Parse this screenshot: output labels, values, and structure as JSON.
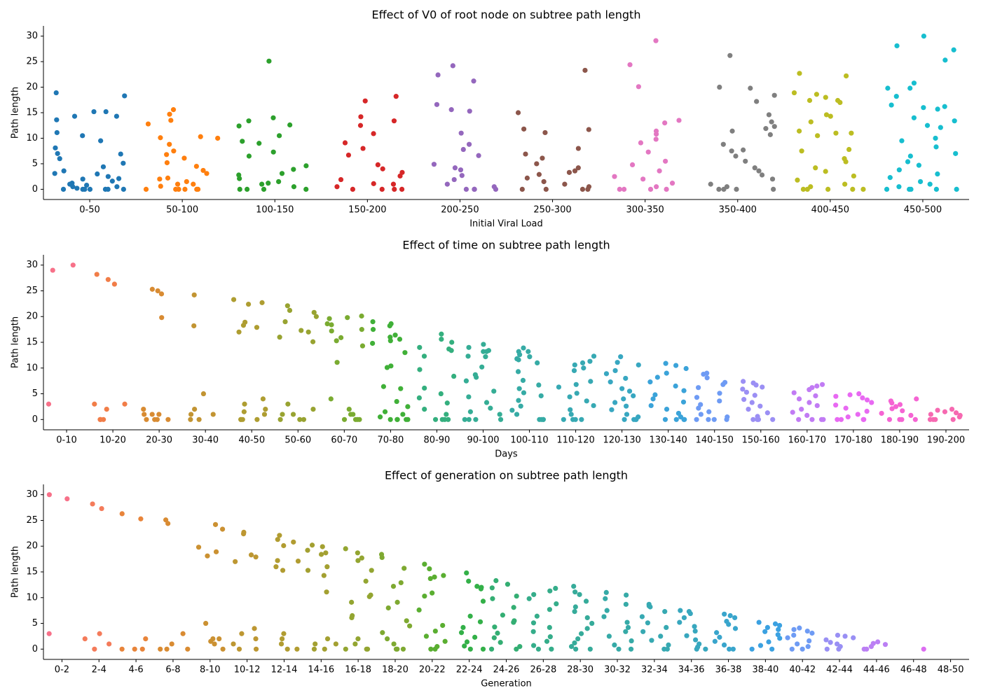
{
  "chart_data": [
    {
      "type": "strip",
      "title": "Effect of V0 of root node on subtree path length",
      "x_label": "Initial Viral Load",
      "y_label": "Path length",
      "categories": [
        "0-50",
        "50-100",
        "100-150",
        "150-200",
        "200-250",
        "250-300",
        "300-350",
        "350-400",
        "400-450",
        "450-500"
      ],
      "colors": [
        "#1f77b4",
        "#ff7f0e",
        "#2ca02c",
        "#d62728",
        "#9467bd",
        "#8c564b",
        "#e377c2",
        "#7f7f7f",
        "#bcbd22",
        "#17becf"
      ],
      "values": [
        [
          14.3,
          8.1,
          6.9,
          18.9,
          15.2,
          15.2,
          13.6,
          10.5,
          9.5,
          11.1,
          7,
          18.3,
          14.3,
          6,
          5.1,
          4.4,
          3.6,
          3.1,
          2.5,
          2.1,
          1.6,
          1.2,
          0.8,
          0.5,
          0.2,
          0,
          0,
          0,
          0,
          0,
          0,
          0,
          2,
          1,
          3,
          0.5
        ],
        [
          8.8,
          13.5,
          12.8,
          15.6,
          10,
          10.1,
          10.3,
          14.7,
          7.5,
          6.8,
          6.1,
          5.2,
          4.5,
          3.7,
          3.1,
          2.2,
          1.5,
          1,
          0.6,
          0,
          0,
          0,
          0,
          0,
          0,
          2,
          1
        ],
        [
          14,
          9.4,
          6.5,
          25.1,
          12.6,
          9,
          12.4,
          10.5,
          7.3,
          13.4,
          4.6,
          3.9,
          3.1,
          2.1,
          1.5,
          1,
          0.5,
          0,
          0,
          0,
          0,
          2.8,
          1.2
        ],
        [
          13.4,
          17.3,
          10.9,
          14.2,
          8,
          18.2,
          9.1,
          12.5,
          6.7,
          4.8,
          4,
          3.3,
          2.6,
          1.9,
          1,
          0.5,
          0,
          0,
          0,
          0,
          1.1
        ],
        [
          16.6,
          24.2,
          21.2,
          22.4,
          11,
          8.8,
          7.8,
          15.6,
          15.3,
          6.6,
          4.9,
          4.2,
          3.8,
          2.7,
          1.9,
          1,
          0.5,
          0,
          0,
          0,
          0
        ],
        [
          15,
          11.8,
          11.7,
          23.3,
          11.1,
          8,
          6.9,
          6.1,
          5,
          4.2,
          3.6,
          2.9,
          2.2,
          1.5,
          1,
          0.5,
          0,
          0,
          0,
          0,
          3.3
        ],
        [
          13.5,
          20.1,
          11.4,
          9.8,
          10.8,
          13,
          9.1,
          24.4,
          29.1,
          7.3,
          5.5,
          4.8,
          3.6,
          2.5,
          2,
          1.2,
          0.5,
          0,
          0,
          0,
          0
        ],
        [
          14.6,
          17.2,
          13.2,
          26.2,
          18.4,
          11.9,
          12.3,
          11.4,
          10.7,
          7.7,
          7.5,
          19.8,
          20,
          8.8,
          6.5,
          5.5,
          4.2,
          3.6,
          2.8,
          2,
          1,
          0.5,
          0,
          0,
          0,
          0
        ],
        [
          22.7,
          22.2,
          13.2,
          17,
          18.6,
          14.6,
          14.3,
          11,
          10.5,
          11.4,
          17.4,
          18.9,
          17.4,
          18,
          11,
          7.8,
          7.5,
          6,
          5.4,
          4.2,
          3.5,
          2.6,
          1.8,
          1,
          0.5,
          0,
          0,
          0,
          0,
          0
        ],
        [
          12.1,
          16.5,
          20.8,
          19.8,
          19.8,
          14,
          18.2,
          15.7,
          16,
          27.3,
          28.1,
          30,
          25.3,
          16.2,
          12.5,
          13.4,
          10,
          9.5,
          8.3,
          7,
          6.5,
          5.4,
          4.7,
          3.8,
          3,
          2.3,
          1.5,
          1,
          0.5,
          0,
          0,
          0,
          0,
          0
        ]
      ],
      "ylim": [
        -2,
        32
      ],
      "yticks": [
        0,
        5,
        10,
        15,
        20,
        25,
        30
      ]
    },
    {
      "type": "strip",
      "title": "Effect of time on subtree path length",
      "x_label": "Days",
      "y_label": "Path length",
      "categories": [
        "0-10",
        "10-20",
        "20-30",
        "30-40",
        "40-50",
        "50-60",
        "60-70",
        "70-80",
        "80-90",
        "90-100",
        "100-110",
        "110-120",
        "120-130",
        "130-140",
        "140-150",
        "150-160",
        "160-170",
        "170-180",
        "180-190",
        "190-200"
      ],
      "colors": [
        "#f77189",
        "#f17d48",
        "#d88b32",
        "#c29432",
        "#ae9d31",
        "#98a331",
        "#7aab31",
        "#40b038",
        "#34af7e",
        "#35ad95",
        "#36aba5",
        "#37a9b3",
        "#38a7c1",
        "#3ba3d9",
        "#6e9bf4",
        "#9b8ff4",
        "#c17bf4",
        "#e869f2",
        "#f564d3",
        "#f669b1"
      ],
      "values": [
        [
          3,
          29,
          30
        ],
        [
          28.2,
          27.2,
          26.3,
          0,
          3,
          2,
          0,
          3,
          0
        ],
        [
          0,
          0,
          0,
          1,
          1,
          25,
          25.3,
          24.4,
          19.8,
          2,
          1,
          0
        ],
        [
          0,
          1,
          2,
          5,
          24.2,
          18.2,
          1,
          0
        ],
        [
          23.3,
          18.9,
          22.4,
          18.3,
          22.7,
          17.9,
          17,
          0,
          0,
          1,
          2,
          3,
          4,
          1.5,
          0,
          0
        ],
        [
          16,
          22.1,
          20.8,
          19,
          17.3,
          17,
          20,
          21.2,
          15.1,
          0,
          1,
          2,
          3,
          0,
          1,
          0
        ],
        [
          18.4,
          18.6,
          17.5,
          17.2,
          14.3,
          15.9,
          15.3,
          11.1,
          20.1,
          19.8,
          19.6,
          0,
          1,
          2,
          4,
          0,
          1,
          0,
          0
        ],
        [
          13,
          18.2,
          17.5,
          16.4,
          15.3,
          14.8,
          10.4,
          10.1,
          19,
          18.6,
          16,
          15.6,
          6.4,
          6,
          3.5,
          2.5,
          1.5,
          1,
          0.5,
          0,
          0,
          0,
          0,
          0
        ],
        [
          15.6,
          16.6,
          15,
          14,
          13.7,
          13.4,
          12.3,
          9.7,
          8.4,
          6.1,
          5,
          4.2,
          3.2,
          2,
          1,
          0,
          0,
          0,
          0
        ],
        [
          13.2,
          13.4,
          13.2,
          12.2,
          10.2,
          8.7,
          7.5,
          14,
          14.6,
          12.3,
          8.2,
          5.5,
          4.4,
          3.3,
          2.2,
          1.5,
          1,
          0,
          0,
          0,
          0
        ],
        [
          12.6,
          13.2,
          13.9,
          13.2,
          11.8,
          9.3,
          7.6,
          6.7,
          6,
          12.2,
          11.6,
          11,
          5.2,
          4.6,
          3.7,
          2.6,
          1.8,
          1,
          0,
          0,
          0,
          0
        ],
        [
          12.3,
          11.3,
          11,
          10.6,
          10,
          9.5,
          7.4,
          6.8,
          6.3,
          5.1,
          4.4,
          3.6,
          2.7,
          1.9,
          1,
          0,
          0,
          0,
          0
        ],
        [
          11.1,
          12.2,
          10.6,
          9.5,
          8.9,
          8,
          7.3,
          6,
          5.5,
          4.6,
          4,
          3.3,
          2.6,
          1.9,
          1,
          0.5,
          0,
          0,
          0,
          0
        ],
        [
          10.9,
          10.5,
          9.9,
          9,
          8.2,
          7.3,
          6.5,
          5.6,
          4.8,
          4,
          3.4,
          2.7,
          2,
          1.2,
          0.5,
          0,
          0,
          0,
          0
        ],
        [
          8.8,
          9,
          8.1,
          7.2,
          6.8,
          6.2,
          5.1,
          4.3,
          3.6,
          2.9,
          2.2,
          1.5,
          1,
          0.5,
          0,
          0,
          0,
          0
        ],
        [
          7.4,
          7.1,
          6.7,
          6.3,
          5.9,
          5.3,
          4.7,
          3.9,
          3.3,
          2.6,
          2,
          1.3,
          0.6,
          0,
          0,
          0,
          0
        ],
        [
          6.8,
          6.5,
          6.2,
          5.8,
          5.2,
          4.6,
          4,
          3.3,
          2.7,
          2,
          1.4,
          0.8,
          0,
          0,
          0,
          0
        ],
        [
          5,
          4.8,
          4.5,
          4.2,
          3.8,
          3.3,
          2.8,
          2.2,
          1.6,
          1,
          0.5,
          0,
          0,
          0,
          0
        ],
        [
          4,
          3.6,
          3.2,
          2.9,
          2.5,
          2.1,
          1.7,
          1.2,
          0.8,
          0,
          0,
          0,
          0
        ],
        [
          2,
          1.8,
          1.5,
          1.3,
          1,
          0.8,
          0.5,
          0,
          0,
          0,
          0
        ]
      ],
      "ylim": [
        -2,
        32
      ],
      "yticks": [
        0,
        5,
        10,
        15,
        20,
        25,
        30
      ]
    },
    {
      "type": "strip",
      "title": "Effect of generation on subtree path length",
      "x_label": "Generation",
      "y_label": "Path length",
      "categories": [
        "0-2",
        "2-4",
        "4-6",
        "6-8",
        "8-10",
        "10-12",
        "12-14",
        "14-16",
        "16-18",
        "18-20",
        "20-22",
        "22-24",
        "24-26",
        "26-28",
        "28-30",
        "30-32",
        "32-34",
        "34-36",
        "36-38",
        "38-40",
        "40-42",
        "42-44",
        "44-46",
        "46-48",
        "48-50"
      ],
      "colors": [
        "#f77189",
        "#f47b5a",
        "#e8843a",
        "#d98b32",
        "#cb9132",
        "#bd9732",
        "#b19c31",
        "#a3a031",
        "#93a531",
        "#7ea931",
        "#5aae31",
        "#33b048",
        "#34ae73",
        "#35ad8a",
        "#36ab9a",
        "#36aaa7",
        "#37a9b2",
        "#38a7be",
        "#39a5cc",
        "#3ba1e1",
        "#6e9bf4",
        "#998ff4",
        "#bb7ff4",
        "#dc6df1",
        "#f565cc"
      ],
      "values": [
        [
          30,
          29.2,
          3
        ],
        [
          27.3,
          28.2,
          3,
          2,
          1,
          0
        ],
        [
          26.3,
          25.3,
          2,
          0,
          0,
          0
        ],
        [
          25.1,
          24.4,
          3,
          1,
          0,
          0,
          0
        ],
        [
          19.8,
          18.9,
          18.1,
          23.3,
          24.2,
          5,
          2,
          1,
          2,
          1.5,
          0
        ],
        [
          17,
          22.4,
          17.9,
          18.3,
          22.7,
          3,
          2,
          1,
          0,
          4,
          0
        ],
        [
          20.8,
          20.1,
          16,
          17.2,
          17.1,
          21.3,
          22.1,
          15.3,
          2,
          1,
          3,
          0,
          0
        ],
        [
          18.4,
          14.3,
          19.9,
          19.2,
          18.7,
          11.1,
          15.3,
          16,
          20.2,
          2,
          1,
          1,
          0,
          0
        ],
        [
          19.5,
          18.7,
          17.7,
          15.3,
          13.2,
          9.1,
          6.1,
          17.2,
          10.5,
          10.2,
          6.5,
          2,
          1,
          0,
          0,
          0
        ],
        [
          18.4,
          17.8,
          15.7,
          12.9,
          12.2,
          9.1,
          8,
          5.5,
          4.5,
          3.2,
          2,
          1,
          0,
          0,
          0
        ],
        [
          16.5,
          14,
          13.7,
          15.6,
          14.3,
          10.9,
          10.3,
          7.6,
          4.6,
          3.5,
          2.5,
          1.5,
          0.5,
          0,
          0
        ],
        [
          12.2,
          11.7,
          14.8,
          13.2,
          12,
          9.3,
          6.4,
          5.3,
          4.2,
          3.2,
          2.3,
          1.4,
          0.6,
          0,
          0
        ],
        [
          13.3,
          12.6,
          11.9,
          10.3,
          9.8,
          8.1,
          6.6,
          5.5,
          5.2,
          4.3,
          3.1,
          2.2,
          1.3,
          0.5,
          0,
          0
        ],
        [
          11.3,
          10.6,
          11.8,
          9.8,
          8.8,
          7.7,
          6.4,
          5.1,
          4.2,
          3.4,
          2.4,
          1.5,
          0.7,
          0,
          0
        ],
        [
          12.2,
          11.1,
          10.6,
          9.3,
          8.2,
          7.3,
          6.1,
          5,
          4,
          3,
          2,
          1.2,
          0.5,
          0,
          0
        ],
        [
          11,
          10.5,
          9.8,
          8.7,
          7.5,
          6.3,
          5.2,
          4.2,
          3.4,
          2.5,
          1.6,
          0.8,
          0,
          0
        ],
        [
          8.7,
          8.4,
          8.2,
          7.3,
          6.3,
          5.1,
          4.2,
          3.4,
          2.5,
          1.7,
          0.8,
          0,
          0
        ],
        [
          7.5,
          7.3,
          6.9,
          6.1,
          5.2,
          4.4,
          3.5,
          2.6,
          1.8,
          1,
          0.4,
          0,
          0
        ],
        [
          6.8,
          6.5,
          6.1,
          5.4,
          4.8,
          4,
          3.2,
          2.3,
          1.5,
          0.8,
          0,
          0
        ],
        [
          5.2,
          4.9,
          4.6,
          4.2,
          3.8,
          3.4,
          2.8,
          2.1,
          1.4,
          0.7,
          0,
          0
        ],
        [
          4.1,
          3.8,
          3.5,
          3.1,
          2.7,
          2.2,
          1.6,
          1,
          0.5,
          0,
          0
        ],
        [
          2.7,
          2.5,
          2.2,
          1.8,
          1.3,
          1,
          0.5,
          0,
          0
        ],
        [
          1.4,
          1.1,
          0.9,
          0.5,
          0,
          0
        ],
        [
          0
        ],
        []
      ],
      "ylim": [
        -2,
        32
      ],
      "yticks": [
        0,
        5,
        10,
        15,
        20,
        25,
        30
      ]
    }
  ]
}
